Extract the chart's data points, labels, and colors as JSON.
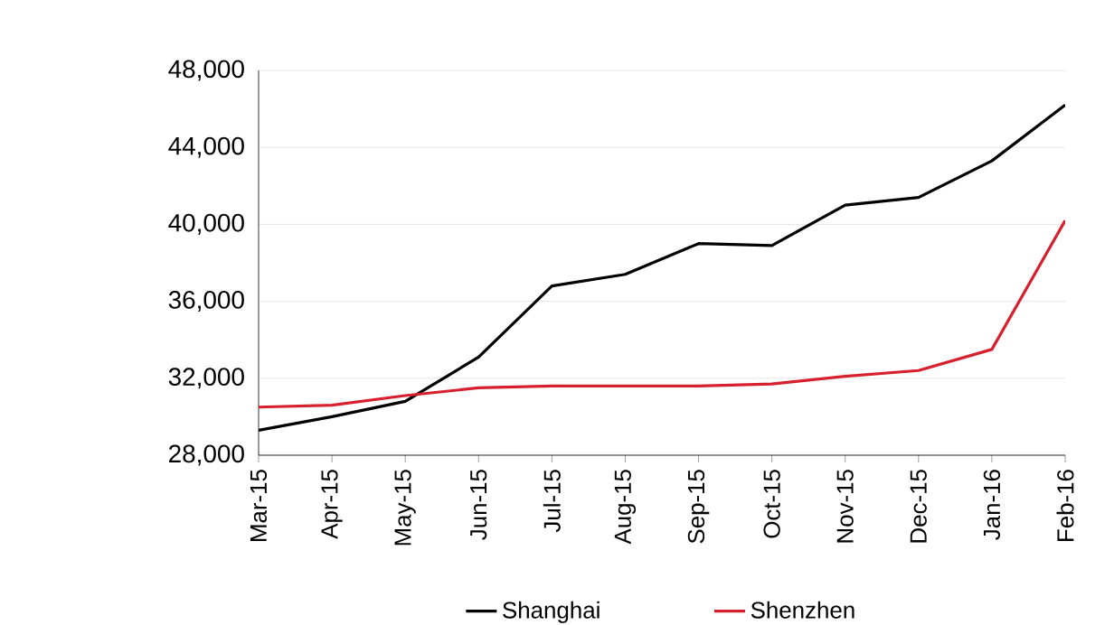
{
  "chart_data": {
    "type": "line",
    "categories": [
      "Mar-15",
      "Apr-15",
      "May-15",
      "Jun-15",
      "Jul-15",
      "Aug-15",
      "Sep-15",
      "Oct-15",
      "Nov-15",
      "Dec-15",
      "Jan-16",
      "Feb-16"
    ],
    "series": [
      {
        "name": "Shanghai",
        "color": "#000000",
        "values": [
          29300,
          30000,
          30800,
          33100,
          36800,
          37400,
          39000,
          38900,
          41000,
          41400,
          43300,
          46200
        ]
      },
      {
        "name": "Shenzhen",
        "color": "#d7202e",
        "values": [
          30500,
          30600,
          31100,
          31500,
          31600,
          31600,
          31600,
          31700,
          32100,
          32400,
          33500,
          40200
        ]
      }
    ],
    "ylim": [
      28000,
      48000
    ],
    "yticks": [
      {
        "value": 28000,
        "label": "28,000"
      },
      {
        "value": 32000,
        "label": "32,000"
      },
      {
        "value": 36000,
        "label": "36,000"
      },
      {
        "value": 40000,
        "label": "40,000"
      },
      {
        "value": 44000,
        "label": "44,000"
      },
      {
        "value": 48000,
        "label": "48,000"
      }
    ],
    "grid": "y",
    "legend": "bottom",
    "marker": "none",
    "line_style": "solid"
  }
}
